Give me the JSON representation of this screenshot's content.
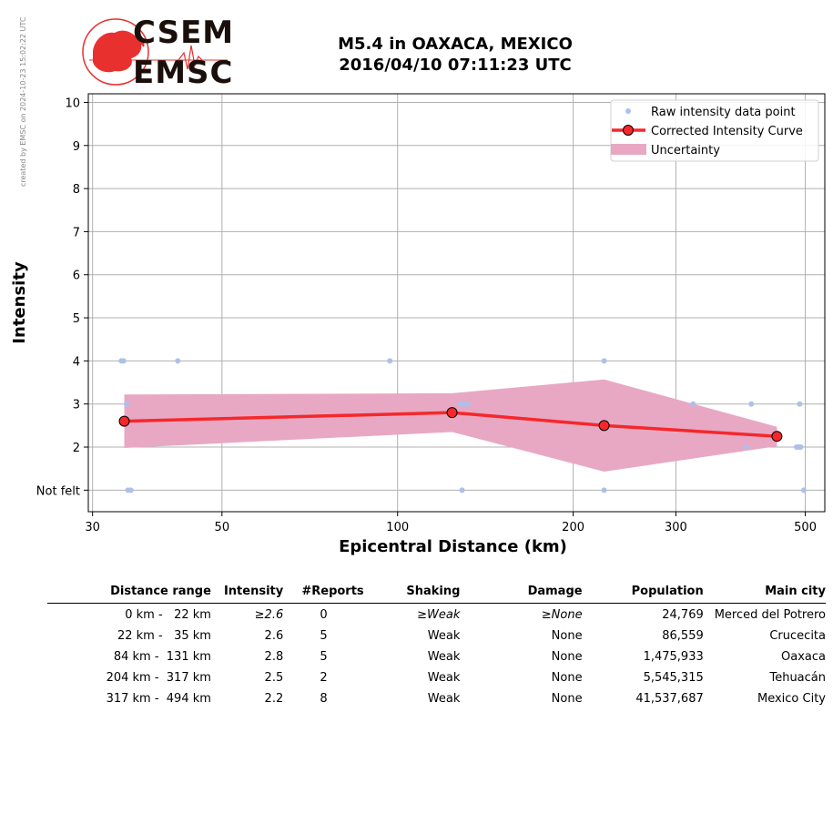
{
  "side_note": "created by EMSC on 2024-10-23 15:02:22 UTC",
  "logo": {
    "line1": "CSEM",
    "line2": "EMSC",
    "colors": {
      "map": "#e8312f",
      "text": "#1a0f0a"
    }
  },
  "title": {
    "line1": "M5.4 in OAXACA, MEXICO",
    "line2": "2016/04/10 07:11:23 UTC"
  },
  "chart_data": {
    "type": "scatter",
    "xlabel": "Epicentral Distance (km)",
    "ylabel": "Intensity",
    "xscale": "log",
    "xlim": [
      29.5,
      540
    ],
    "ylim": [
      0.5,
      10.2
    ],
    "xticks": [
      30,
      50,
      100,
      200,
      300,
      500
    ],
    "yticks": [
      {
        "value": 1,
        "label": "Not felt"
      },
      {
        "value": 2,
        "label": "2"
      },
      {
        "value": 3,
        "label": "3"
      },
      {
        "value": 4,
        "label": "4"
      },
      {
        "value": 5,
        "label": "5"
      },
      {
        "value": 6,
        "label": "6"
      },
      {
        "value": 7,
        "label": "7"
      },
      {
        "value": 8,
        "label": "8"
      },
      {
        "value": 9,
        "label": "9"
      },
      {
        "value": 10,
        "label": "10"
      }
    ],
    "grid": true,
    "legend_position": "top-right",
    "legend": [
      "Raw intensity data point",
      "Corrected Intensity Curve",
      "Uncertainty"
    ],
    "colors": {
      "raw": "#aec0ea",
      "curve": "#f6272b",
      "marker_edge": "#000000",
      "uncertainty": "#e8a8c3",
      "grid": "#b0b0b0"
    },
    "raw_points": [
      [
        33.6,
        4
      ],
      [
        33.9,
        4
      ],
      [
        42.0,
        4
      ],
      [
        97,
        4
      ],
      [
        226,
        4
      ],
      [
        34.3,
        3
      ],
      [
        128,
        3
      ],
      [
        130,
        3
      ],
      [
        132,
        3
      ],
      [
        321,
        3
      ],
      [
        404,
        3
      ],
      [
        489,
        3
      ],
      [
        396,
        2
      ],
      [
        483,
        2
      ],
      [
        487,
        2
      ],
      [
        491,
        2
      ],
      [
        34.5,
        1
      ],
      [
        34.9,
        1
      ],
      [
        129,
        1
      ],
      [
        226,
        1
      ],
      [
        497,
        1
      ]
    ],
    "curve": [
      {
        "x": 34.0,
        "y": 2.6
      },
      {
        "x": 124,
        "y": 2.8
      },
      {
        "x": 226,
        "y": 2.5
      },
      {
        "x": 447,
        "y": 2.25
      }
    ],
    "uncertainty": {
      "upper": [
        [
          34.0,
          3.22
        ],
        [
          124,
          3.25
        ],
        [
          226,
          3.57
        ],
        [
          447,
          2.47
        ]
      ],
      "lower": [
        [
          34.0,
          1.98
        ],
        [
          124,
          2.35
        ],
        [
          226,
          1.43
        ],
        [
          447,
          2.02
        ]
      ]
    }
  },
  "table": {
    "headers": [
      "Distance range",
      "Intensity",
      "#Reports",
      "Shaking",
      "Damage",
      "Population",
      "Main city"
    ],
    "rows": [
      [
        "0 km -   22 km",
        "≥2.6",
        "0",
        "≥Weak",
        "≥None",
        "24,769",
        "Merced del Potrero"
      ],
      [
        "22 km -   35 km",
        "2.6",
        "5",
        "Weak",
        "None",
        "86,559",
        "Crucecita"
      ],
      [
        "84 km -  131 km",
        "2.8",
        "5",
        "Weak",
        "None",
        "1,475,933",
        "Oaxaca"
      ],
      [
        "204 km -  317 km",
        "2.5",
        "2",
        "Weak",
        "None",
        "5,545,315",
        "Tehuacán"
      ],
      [
        "317 km -  494 km",
        "2.2",
        "8",
        "Weak",
        "None",
        "41,537,687",
        "Mexico City"
      ]
    ]
  }
}
